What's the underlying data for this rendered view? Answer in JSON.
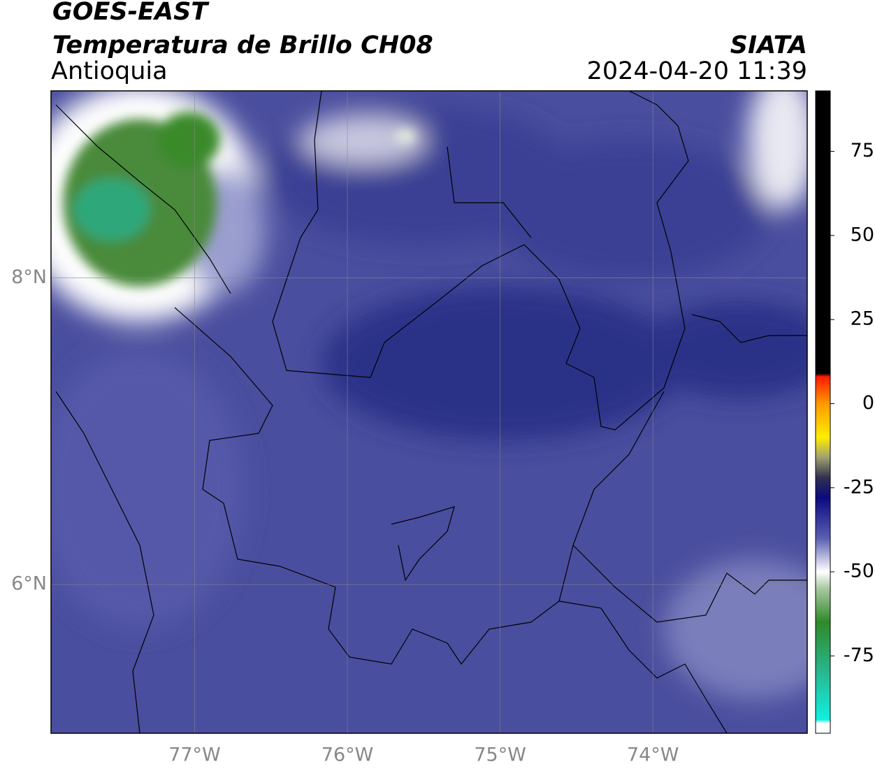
{
  "header": {
    "title": "GOES-EAST",
    "subtitle": "Temperatura de Brillo CH08",
    "region": "Antioquia",
    "source": "SIATA",
    "datetime": "2024-04-20 11:39"
  },
  "map": {
    "xlim": [
      -77.94,
      -72.99
    ],
    "ylim": [
      5.03,
      9.22
    ],
    "xticks": [
      {
        "value": -77,
        "label": "77°W"
      },
      {
        "value": -76,
        "label": "76°W"
      },
      {
        "value": -75,
        "label": "75°W"
      },
      {
        "value": -74,
        "label": "74°W"
      }
    ],
    "yticks": [
      {
        "value": 8,
        "label": "8°N"
      },
      {
        "value": 6,
        "label": "6°N"
      }
    ],
    "grid": true
  },
  "colorbar": {
    "lim": [
      -98,
      93
    ],
    "ticks": [
      75,
      50,
      25,
      0,
      -25,
      -50,
      -75
    ],
    "stops": [
      {
        "value": 93,
        "color": "#000000"
      },
      {
        "value": 9,
        "color": "#000000"
      },
      {
        "value": 8,
        "color": "#ff1a00"
      },
      {
        "value": 0,
        "color": "#ff9900"
      },
      {
        "value": -10,
        "color": "#ffee00"
      },
      {
        "value": -16,
        "color": "#a0a070"
      },
      {
        "value": -22,
        "color": "#303050"
      },
      {
        "value": -28,
        "color": "#0a0a80"
      },
      {
        "value": -40,
        "color": "#5a5fb0"
      },
      {
        "value": -50,
        "color": "#ffffff"
      },
      {
        "value": -55,
        "color": "#a8c8a0"
      },
      {
        "value": -65,
        "color": "#2e8a28"
      },
      {
        "value": -80,
        "color": "#28b890"
      },
      {
        "value": -94,
        "color": "#10f0e0"
      },
      {
        "value": -95,
        "color": "#ffffff"
      },
      {
        "value": -98,
        "color": "#ffffff"
      }
    ]
  }
}
